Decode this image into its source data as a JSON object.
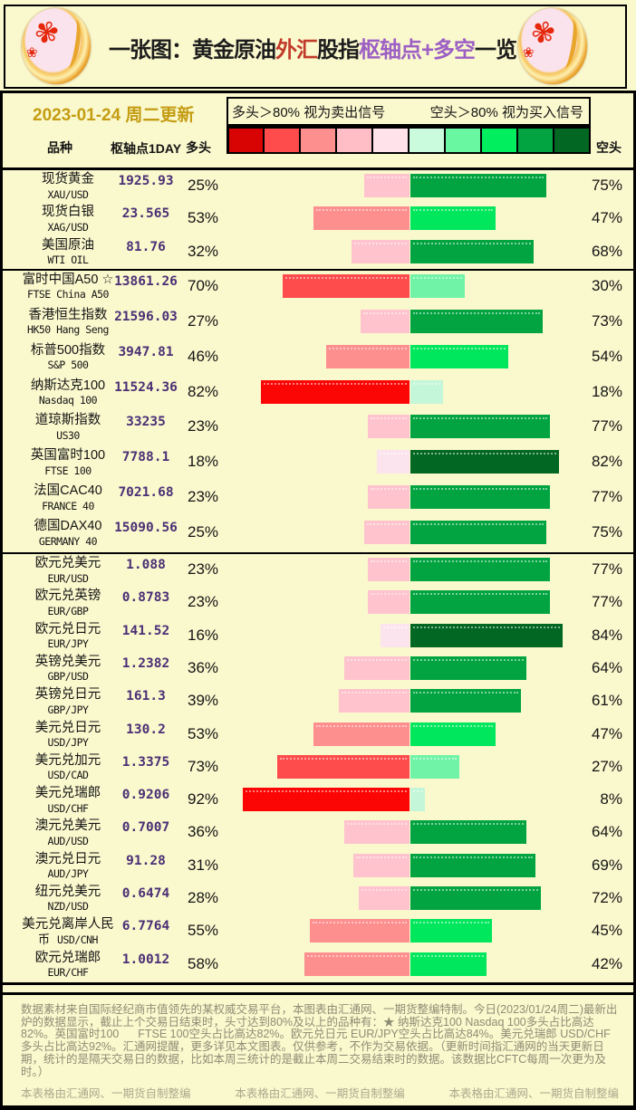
{
  "title": {
    "parts": [
      {
        "text": "一张图：黄金原油",
        "color": "#1c1c1c"
      },
      {
        "text": "外汇",
        "color": "#C23B2A"
      },
      {
        "text": "股指",
        "color": "#1c1c1c"
      },
      {
        "text": "枢轴点+多空",
        "color": "#9C5FC4"
      },
      {
        "text": "一览",
        "color": "#1c1c1c"
      }
    ]
  },
  "date_label": "2023-01-24 周二更新",
  "legend": {
    "long_note": "多头＞80% 视为卖出信号",
    "short_note": "空头＞80% 视为买入信号",
    "scale_colors": [
      "#D80303",
      "#FE4B4B",
      "#FE8F8F",
      "#FFBDC5",
      "#FFE2EA",
      "#C9FBDC",
      "#69F7A1",
      "#01EE5F",
      "#01A440",
      "#026722"
    ]
  },
  "columns": {
    "variety": "品种",
    "pivot": "枢轴点1DAY",
    "long": "多头",
    "short": "空头"
  },
  "bar_colors": {
    "long_levels": [
      "#FBE4EE",
      "#FFC3CD",
      "#FE8F8F",
      "#FE4B4B",
      "#FB0505"
    ],
    "short_levels": [
      "#C4F6D9",
      "#70F3A7",
      "#01E75D",
      "#01A440",
      "#026722"
    ]
  },
  "chart_data": {
    "type": "bar",
    "orientation": "diverging-horizontal",
    "unit": "%",
    "value_note": "long = 多头 share, short = 空头 share, long + short = 100",
    "groups": [
      {
        "rows": [
          {
            "name": "现货黄金",
            "code": "XAU/USD",
            "pivot": "1925.93",
            "long": 25,
            "short": 75
          },
          {
            "name": "现货白银",
            "code": "XAG/USD",
            "pivot": "23.565",
            "long": 53,
            "short": 47
          },
          {
            "name": "美国原油",
            "code": "WTI OIL",
            "pivot": "81.76",
            "long": 32,
            "short": 68
          }
        ]
      },
      {
        "rows": [
          {
            "name": "富时中国A50 ☆",
            "code": "FTSE China A50",
            "pivot": "13861.26",
            "long": 70,
            "short": 30
          },
          {
            "name": "香港恒生指数",
            "code": "HK50 Hang Seng",
            "pivot": "21596.03",
            "long": 27,
            "short": 73
          },
          {
            "name": "标普500指数",
            "code": "S&P 500",
            "pivot": "3947.81",
            "long": 46,
            "short": 54
          },
          {
            "name": "纳斯达克100",
            "code": "Nasdaq 100",
            "pivot": "11524.36",
            "long": 82,
            "short": 18
          },
          {
            "name": "道琼斯指数",
            "code": "US30",
            "pivot": "33235",
            "long": 23,
            "short": 77
          },
          {
            "name": "英国富时100",
            "code": "FTSE 100",
            "pivot": "7788.1",
            "long": 18,
            "short": 82
          },
          {
            "name": "法国CAC40",
            "code": "FRANCE 40",
            "pivot": "7021.68",
            "long": 23,
            "short": 77
          },
          {
            "name": "德国DAX40",
            "code": "GERMANY 40",
            "pivot": "15090.56",
            "long": 25,
            "short": 75
          }
        ]
      },
      {
        "rows": [
          {
            "name": "欧元兑美元",
            "code": "EUR/USD",
            "pivot": "1.088",
            "long": 23,
            "short": 77
          },
          {
            "name": "欧元兑英镑",
            "code": "EUR/GBP",
            "pivot": "0.8783",
            "long": 23,
            "short": 77
          },
          {
            "name": "欧元兑日元",
            "code": "EUR/JPY",
            "pivot": "141.52",
            "long": 16,
            "short": 84
          },
          {
            "name": "英镑兑美元",
            "code": "GBP/USD",
            "pivot": "1.2382",
            "long": 36,
            "short": 64
          },
          {
            "name": "英镑兑日元",
            "code": "GBP/JPY",
            "pivot": "161.3",
            "long": 39,
            "short": 61
          },
          {
            "name": "美元兑日元",
            "code": "USD/JPY",
            "pivot": "130.2",
            "long": 53,
            "short": 47
          },
          {
            "name": "美元兑加元",
            "code": "USD/CAD",
            "pivot": "1.3375",
            "long": 73,
            "short": 27
          },
          {
            "name": "美元兑瑞郎",
            "code": "USD/CHF",
            "pivot": "0.9206",
            "long": 92,
            "short": 8
          },
          {
            "name": "澳元兑美元",
            "code": "AUD/USD",
            "pivot": "0.7007",
            "long": 36,
            "short": 64
          },
          {
            "name": "澳元兑日元",
            "code": "AUD/JPY",
            "pivot": "91.28",
            "long": 31,
            "short": 69
          },
          {
            "name": "纽元兑美元",
            "code": "NZD/USD",
            "pivot": "0.6474",
            "long": 28,
            "short": 72
          },
          {
            "name": "美元兑离岸人民",
            "name2": "币",
            "code": "USD/CNH",
            "pivot": "6.7764",
            "long": 55,
            "short": 45
          },
          {
            "name": "欧元兑瑞郎",
            "code": "EUR/CHF",
            "pivot": "1.0012",
            "long": 58,
            "short": 42
          }
        ]
      }
    ]
  },
  "footer": {
    "paragraph": "数据素材来自国际经纪商市值领先的某权威交易平台，本图表由汇通网、一期货整编特制。今日(2023/01/24周二)最新出炉的数据显示，截止上个交易日结束时，头寸达到80%及以上的品种有：★ 纳斯达克100 Nasdaq 100多头占比高达82%。英国富时100      FTSE 100空头占比高达82%。欧元兑日元 EUR/JPY空头占比高达84%。美元兑瑞郎 USD/CHF多头占比高达92%。汇通网提醒，更多详见本文图表。仅供参考，不作为交易依据。（更新时间指汇通网的当天更新日期，统计的是隔天交易日的数据，比如本周三统计的是截止本周二交易结束时的数据。该数据比CFTC每周一次更为及时。）",
    "watermarks": [
      "本表格由汇通网、一期货自制整编",
      "本表格由汇通网、一期货自制整编",
      "本表格由汇通网、一期货自制整编"
    ]
  }
}
